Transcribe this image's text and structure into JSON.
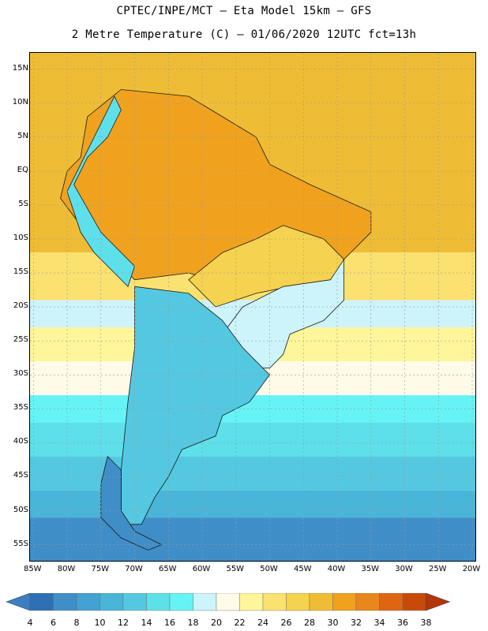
{
  "header": {
    "line1": "CPTEC/INPE/MCT  –   Eta Model 15km  –  GFS",
    "line2": "2 Metre Temperature (C) – 01/06/2020 12UTC fct=13h"
  },
  "map": {
    "region": "South America",
    "lat_labels": [
      "15N",
      "10N",
      "5N",
      "EQ",
      "5S",
      "10S",
      "15S",
      "20S",
      "25S",
      "30S",
      "35S",
      "40S",
      "45S",
      "50S",
      "55S"
    ],
    "lon_labels": [
      "85W",
      "80W",
      "75W",
      "70W",
      "65W",
      "60W",
      "55W",
      "50W",
      "45W",
      "40W",
      "35W",
      "30W",
      "25W",
      "20W"
    ],
    "lat_values": [
      15,
      10,
      5,
      0,
      -5,
      -10,
      -15,
      -20,
      -25,
      -30,
      -35,
      -40,
      -45,
      -50,
      -55
    ],
    "lon_values": [
      -85,
      -80,
      -75,
      -70,
      -65,
      -60,
      -55,
      -50,
      -45,
      -40,
      -35,
      -30,
      -25,
      -20
    ],
    "lat_range": [
      -57.6,
      17.4
    ],
    "lon_range": [
      -85.5,
      -19.3
    ],
    "ocean_bands": [
      {
        "lat_from": 17.4,
        "lat_to": -12,
        "temp_c": 28
      },
      {
        "lat_from": -12,
        "lat_to": -19,
        "temp_c": 24
      },
      {
        "lat_from": -19,
        "lat_to": -23,
        "temp_c": 18
      },
      {
        "lat_from": -23,
        "lat_to": -28,
        "temp_c": 22
      },
      {
        "lat_from": -28,
        "lat_to": -33,
        "temp_c": 20
      },
      {
        "lat_from": -33,
        "lat_to": -37,
        "temp_c": 16
      },
      {
        "lat_from": -37,
        "lat_to": -42,
        "temp_c": 14
      },
      {
        "lat_from": -42,
        "lat_to": -47,
        "temp_c": 12
      },
      {
        "lat_from": -47,
        "lat_to": -51,
        "temp_c": 10
      },
      {
        "lat_from": -51,
        "lat_to": -57.6,
        "temp_c": 6
      }
    ],
    "land_zones": [
      {
        "name": "tropical-interior",
        "temp_c": 30
      },
      {
        "name": "central-brazil",
        "temp_c": 26
      },
      {
        "name": "southeast-brazil",
        "temp_c": 18
      },
      {
        "name": "southern-cone",
        "temp_c": 12
      },
      {
        "name": "patagonia-andes",
        "temp_c": 6
      },
      {
        "name": "andes-north",
        "temp_c": 14
      }
    ]
  },
  "colorbar": {
    "labels": [
      "4",
      "6",
      "8",
      "10",
      "12",
      "14",
      "16",
      "18",
      "20",
      "22",
      "24",
      "26",
      "28",
      "30",
      "32",
      "34",
      "36",
      "38"
    ],
    "values": [
      4,
      6,
      8,
      10,
      12,
      14,
      16,
      18,
      20,
      22,
      24,
      26,
      28,
      30,
      32,
      34,
      36,
      38
    ],
    "colors": [
      "#3b7fc1",
      "#2f6fb4",
      "#3f8ec8",
      "#43a2d2",
      "#49b5d8",
      "#55c8e1",
      "#5ee0ea",
      "#66f3f5",
      "#cdf3fb",
      "#fffbe8",
      "#fff59a",
      "#fbe170",
      "#f5d24f",
      "#efbd35",
      "#f0a21e",
      "#e9861c",
      "#de6512",
      "#c84a0a",
      "#b5360a"
    ]
  }
}
